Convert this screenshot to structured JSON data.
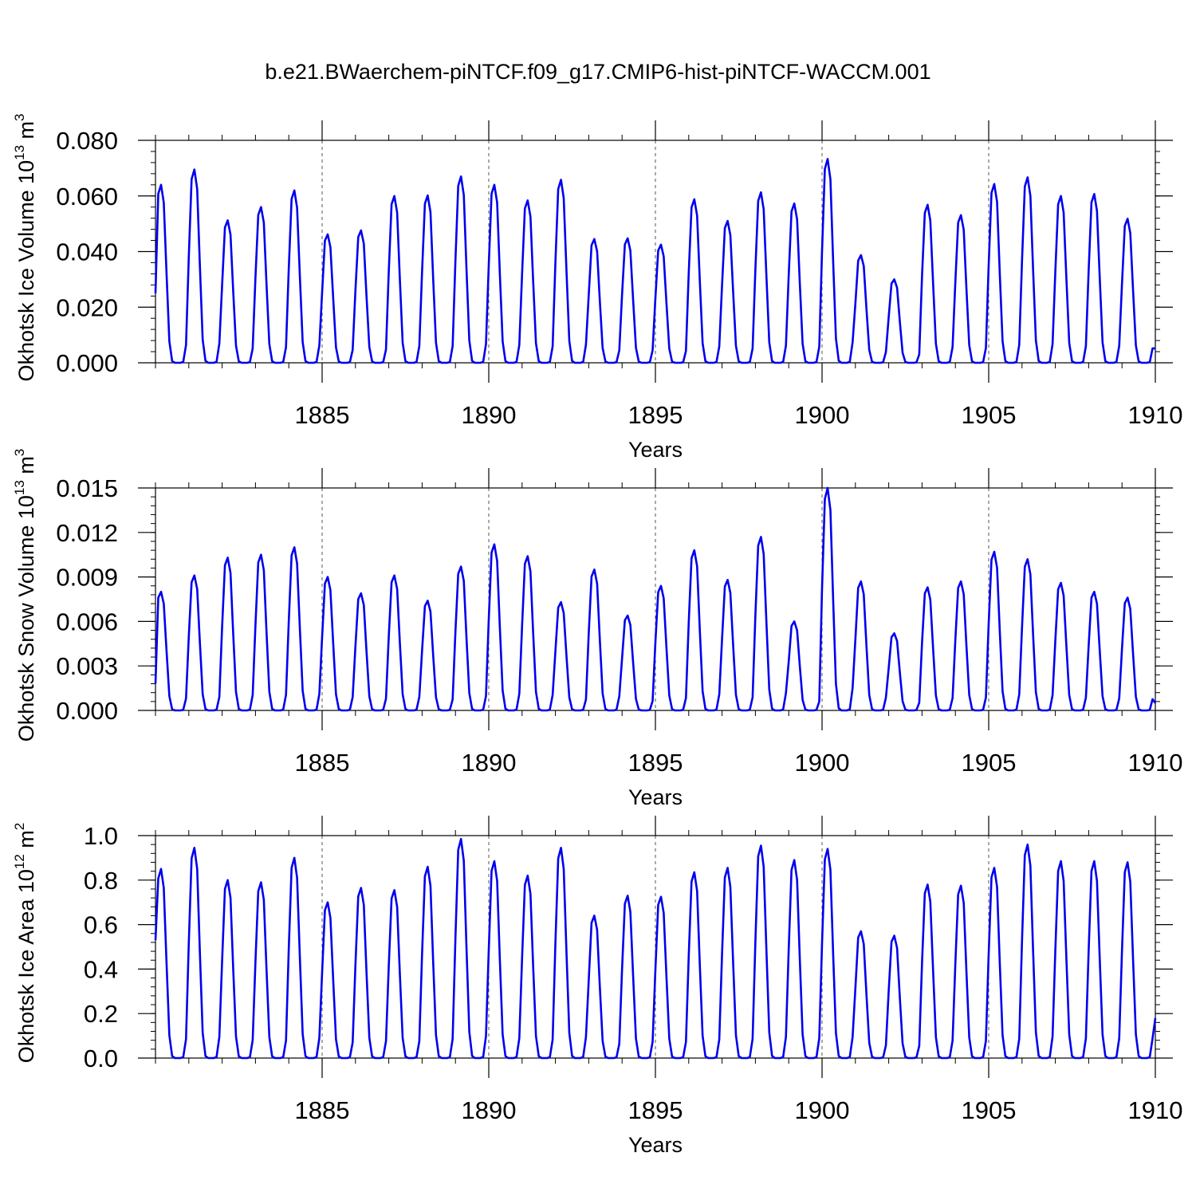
{
  "title": "b.e21.BWaerchem-piNTCF.f09_g17.CMIP6-hist-piNTCF-WACCM.001",
  "colors": {
    "series": "#0000ee",
    "axis": "#000000",
    "refline": "#555555"
  },
  "chart_data": [
    {
      "type": "line",
      "name": "ice-volume",
      "ylabel_main": "Okhotsk Ice Volume 10",
      "ylabel_exp": "13",
      "ylabel_unit": " m",
      "ylabel_unit_exp": "3",
      "xlabel": "Years",
      "xlim": [
        1880,
        1910
      ],
      "ylim": [
        0,
        0.08
      ],
      "x_ticks": [
        1885,
        1890,
        1895,
        1900,
        1905,
        1910
      ],
      "x_tick_labels": [
        "1885",
        "1890",
        "1895",
        "1900",
        "1905",
        "1910"
      ],
      "y_ticks": [
        0,
        0.02,
        0.04,
        0.06,
        0.08
      ],
      "y_tick_labels": [
        "0.000",
        "0.020",
        "0.040",
        "0.060",
        "0.080"
      ],
      "y_minor_step": 0.004,
      "x_minor_step": 1,
      "ref_lines": [
        1885,
        1890,
        1895,
        1900,
        1905
      ],
      "line_color": "#0000ee",
      "start": 0.025,
      "peaks": [
        0.064,
        0.0695,
        0.0512,
        0.056,
        0.062,
        0.0462,
        0.0476,
        0.06,
        0.0602,
        0.067,
        0.064,
        0.0584,
        0.0658,
        0.0445,
        0.0448,
        0.0425,
        0.0588,
        0.051,
        0.0613,
        0.0573,
        0.0733,
        0.0387,
        0.03,
        0.0568,
        0.0531,
        0.0643,
        0.0667,
        0.06,
        0.0607,
        0.0518
      ],
      "end": 0.0052
    },
    {
      "type": "line",
      "name": "snow-volume",
      "ylabel_main": "Okhotsk Snow Volume 10",
      "ylabel_exp": "13",
      "ylabel_unit": " m",
      "ylabel_unit_exp": "3",
      "xlabel": "Years",
      "xlim": [
        1880,
        1910
      ],
      "ylim": [
        0,
        0.015
      ],
      "x_ticks": [
        1885,
        1890,
        1895,
        1900,
        1905,
        1910
      ],
      "x_tick_labels": [
        "1885",
        "1890",
        "1895",
        "1900",
        "1905",
        "1910"
      ],
      "y_ticks": [
        0,
        0.003,
        0.006,
        0.009,
        0.012,
        0.015
      ],
      "y_tick_labels": [
        "0.000",
        "0.003",
        "0.006",
        "0.009",
        "0.012",
        "0.015"
      ],
      "y_minor_step": 0.0006,
      "x_minor_step": 1,
      "ref_lines": [
        1885,
        1890,
        1895,
        1900,
        1905
      ],
      "line_color": "#0000ee",
      "start": 0.0018,
      "peaks": [
        0.008,
        0.0091,
        0.0103,
        0.0105,
        0.011,
        0.009,
        0.0079,
        0.0091,
        0.0074,
        0.0097,
        0.0112,
        0.0104,
        0.0073,
        0.0095,
        0.0064,
        0.0084,
        0.0108,
        0.0088,
        0.0117,
        0.006,
        0.015,
        0.0087,
        0.0052,
        0.0083,
        0.0087,
        0.0107,
        0.0102,
        0.0086,
        0.008,
        0.0076
      ],
      "end": 0.0005
    },
    {
      "type": "line",
      "name": "ice-area",
      "ylabel_main": "Okhotsk Ice Area 10",
      "ylabel_exp": "12",
      "ylabel_unit": " m",
      "ylabel_unit_exp": "2",
      "xlabel": "Years",
      "xlim": [
        1880,
        1910
      ],
      "ylim": [
        0,
        1.0
      ],
      "x_ticks": [
        1885,
        1890,
        1895,
        1900,
        1905,
        1910
      ],
      "x_tick_labels": [
        "1885",
        "1890",
        "1895",
        "1900",
        "1905",
        "1910"
      ],
      "y_ticks": [
        0,
        0.2,
        0.4,
        0.6,
        0.8,
        1.0
      ],
      "y_tick_labels": [
        "0.0",
        "0.2",
        "0.4",
        "0.6",
        "0.8",
        "1.0"
      ],
      "y_minor_step": 0.04,
      "x_minor_step": 1,
      "ref_lines": [
        1885,
        1890,
        1895,
        1900,
        1905
      ],
      "line_color": "#0000ee",
      "start": 0.53,
      "peaks": [
        0.85,
        0.945,
        0.8,
        0.79,
        0.9,
        0.7,
        0.765,
        0.755,
        0.86,
        0.985,
        0.885,
        0.82,
        0.945,
        0.64,
        0.73,
        0.725,
        0.835,
        0.855,
        0.955,
        0.89,
        0.94,
        0.57,
        0.55,
        0.78,
        0.775,
        0.855,
        0.96,
        0.885,
        0.885,
        0.88
      ],
      "end": 0.18
    }
  ]
}
